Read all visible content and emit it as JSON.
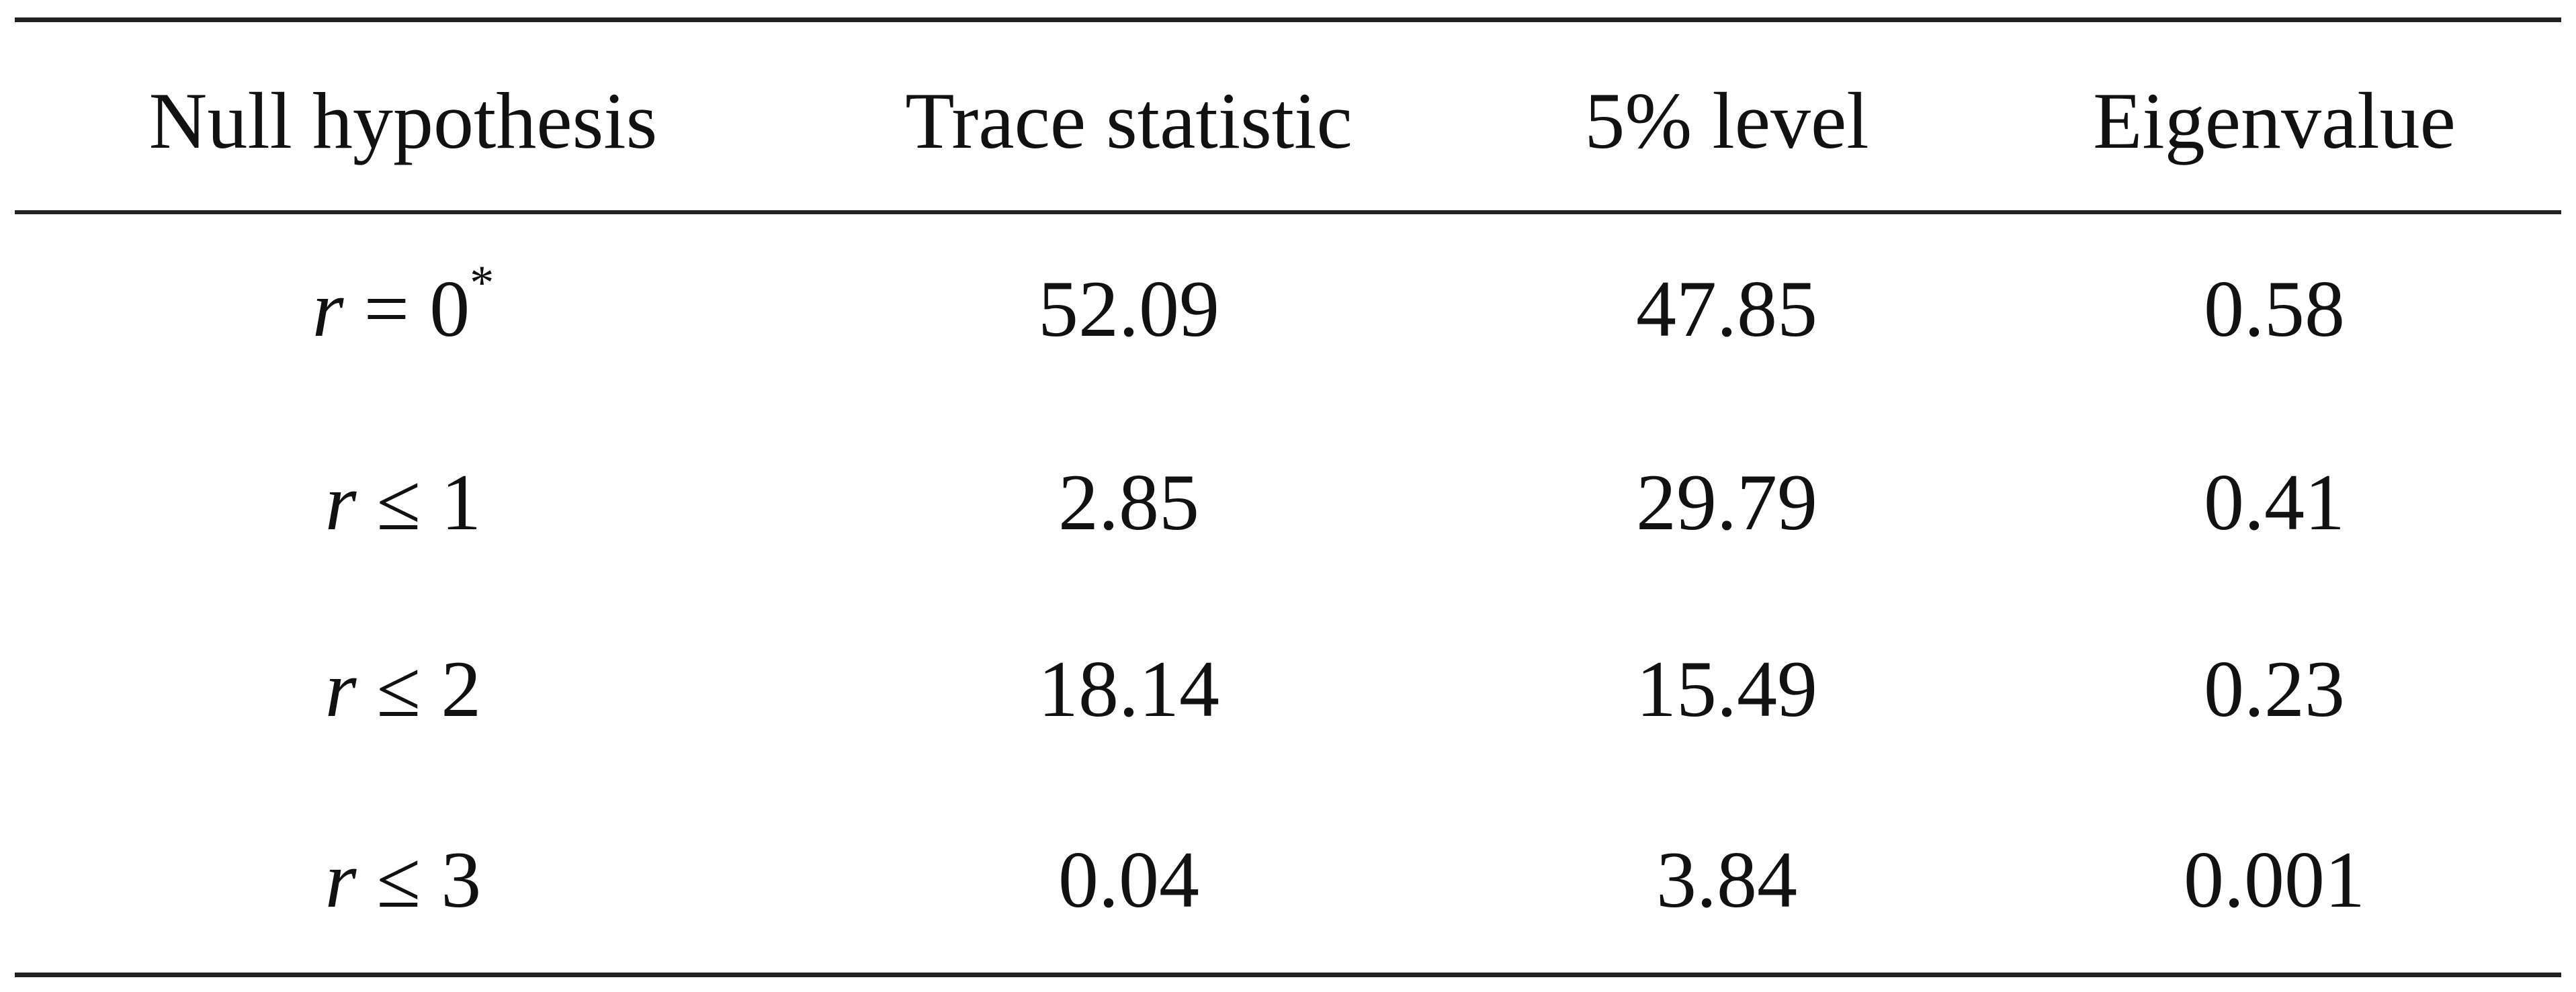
{
  "table": {
    "headers": [
      "Null hypothesis",
      "Trace statistic",
      "5% level",
      "Eigenvalue"
    ],
    "rows": [
      {
        "hypothesis": {
          "var": "r",
          "op": " = ",
          "val": "0",
          "sup": "*"
        },
        "trace": "52.09",
        "level": "47.85",
        "eigen": "0.58"
      },
      {
        "hypothesis": {
          "var": "r",
          "op": " ≤ ",
          "val": "1",
          "sup": ""
        },
        "trace": "2.85",
        "level": "29.79",
        "eigen": "0.41"
      },
      {
        "hypothesis": {
          "var": "r",
          "op": " ≤ ",
          "val": "2",
          "sup": ""
        },
        "trace": "18.14",
        "level": "15.49",
        "eigen": "0.23"
      },
      {
        "hypothesis": {
          "var": "r",
          "op": " ≤ ",
          "val": "3",
          "sup": ""
        },
        "trace": "0.04",
        "level": "3.84",
        "eigen": "0.001"
      }
    ]
  }
}
